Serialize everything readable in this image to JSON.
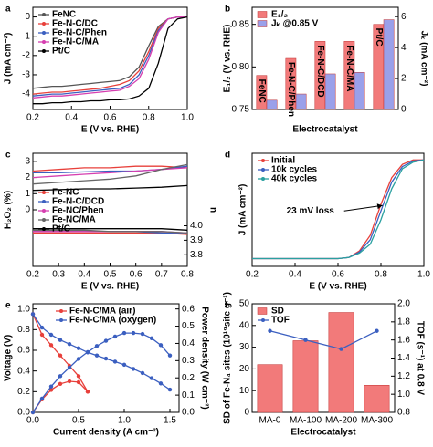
{
  "chart_data": [
    {
      "type": "line",
      "label": "a",
      "xlabel": "E (V vs. RHE)",
      "ylabel": "J (mA cm⁻²)",
      "x": [
        0.2,
        0.25,
        0.3,
        0.35,
        0.4,
        0.45,
        0.5,
        0.55,
        0.6,
        0.65,
        0.7,
        0.75,
        0.8,
        0.85,
        0.9,
        0.95,
        1.0
      ],
      "xlim": [
        0.2,
        1.0
      ],
      "xticks": [
        0.2,
        0.4,
        0.6,
        0.8,
        {
          "value": 1.0,
          "label": "1.0"
        }
      ],
      "ylim": [
        -4.8,
        0.5
      ],
      "yticks": [
        -4,
        -3,
        -2,
        -1,
        0
      ],
      "legend": "upper left",
      "series": [
        {
          "name": "FeNC",
          "color": "#555555",
          "values": [
            -3.7,
            -3.65,
            -3.6,
            -3.6,
            -3.55,
            -3.5,
            -3.45,
            -3.4,
            -3.35,
            -3.3,
            -3.1,
            -2.6,
            -1.5,
            -0.5,
            -0.1,
            0,
            0
          ]
        },
        {
          "name": "Fe-N-C/DC",
          "color": "#e8403b",
          "values": [
            -4.0,
            -3.95,
            -3.9,
            -3.9,
            -3.85,
            -3.8,
            -3.75,
            -3.7,
            -3.6,
            -3.5,
            -3.3,
            -2.8,
            -1.8,
            -0.6,
            -0.1,
            0,
            0
          ]
        },
        {
          "name": "Fe-N-C/Phen",
          "color": "#3b5fc0",
          "values": [
            -4.1,
            -4.05,
            -4.0,
            -4.0,
            -3.95,
            -3.9,
            -3.85,
            -3.8,
            -3.75,
            -3.7,
            -3.5,
            -3.0,
            -2.0,
            -0.7,
            -0.1,
            0,
            0
          ]
        },
        {
          "name": "Fe-N-C/MA",
          "color": "#d63fb0",
          "values": [
            -4.2,
            -4.15,
            -4.1,
            -4.1,
            -4.05,
            -4.0,
            -3.95,
            -3.9,
            -3.85,
            -3.8,
            -3.6,
            -3.2,
            -2.2,
            -0.8,
            -0.1,
            0,
            0
          ]
        },
        {
          "name": "Pt/C",
          "color": "#000000",
          "values": [
            -4.5,
            -4.5,
            -4.45,
            -4.45,
            -4.4,
            -4.4,
            -4.35,
            -4.35,
            -4.3,
            -4.3,
            -4.25,
            -4.1,
            -3.7,
            -2.4,
            -0.6,
            -0.1,
            0
          ]
        }
      ]
    },
    {
      "type": "bar",
      "label": "b",
      "xlabel": "Electrocatalyst",
      "ylabel": "E₁/₂ (V vs. RHE)",
      "y2label": "Jₖ (mA cm⁻²)",
      "categories": [
        "FeNC",
        "Fe-N-C/Phen",
        "Fe-N-C/DCD",
        "Fe-N-C/MA",
        "Pt/C"
      ],
      "ylim": [
        0.75,
        0.87
      ],
      "yticks": [
        0.75,
        {
          "value": 0.8,
          "label": "0.80"
        },
        0.85
      ],
      "y2lim": [
        0,
        6.6
      ],
      "y2ticks": [
        0,
        2,
        4,
        6
      ],
      "legend": "upper left",
      "series": [
        {
          "name": "E₁/₂",
          "color": "#f27a7a",
          "values": [
            0.79,
            0.81,
            0.83,
            0.83,
            0.85
          ]
        },
        {
          "name": "Jₖ @0.85 V",
          "color": "#9aa0ea",
          "axis": "y2",
          "values": [
            0.6,
            1.0,
            2.3,
            2.4,
            5.8
          ]
        }
      ]
    },
    {
      "type": "line",
      "label": "c",
      "xlabel": "E (V vs. RHE)",
      "ylabel": "H₂O₂ (%)",
      "y2label": "n",
      "x": [
        0.2,
        0.3,
        0.4,
        0.5,
        0.6,
        0.7,
        0.8
      ],
      "xlim": [
        0.2,
        0.8
      ],
      "xticks": [
        0.2,
        0.3,
        0.4,
        0.5,
        0.6,
        0.7,
        0.8
      ],
      "ylim": [
        -3.5,
        3.5
      ],
      "yticks": [
        0,
        1,
        2,
        3
      ],
      "y2lim": [
        3.72,
        4.5
      ],
      "y2ticks": [
        3.8,
        3.9,
        {
          "value": 4.0,
          "label": "4.0"
        }
      ],
      "legend": "center left",
      "series": [
        {
          "name": "Fe-NC",
          "color": "#e8403b",
          "values": [
            2.4,
            2.5,
            2.6,
            2.6,
            2.7,
            2.7,
            2.6
          ]
        },
        {
          "name": "Fe-N-C/DCD",
          "color": "#3b5fc0",
          "values": [
            2.3,
            2.3,
            2.35,
            2.4,
            2.4,
            2.5,
            2.7
          ]
        },
        {
          "name": "Fe-NC/Phen",
          "color": "#d63fb0",
          "values": [
            2.0,
            2.1,
            2.2,
            2.3,
            2.4,
            2.5,
            2.6
          ]
        },
        {
          "name": "Fe-NC/MA",
          "color": "#666666",
          "values": [
            1.6,
            1.7,
            1.8,
            1.9,
            2.1,
            2.5,
            2.8
          ]
        },
        {
          "name": "Pt/C",
          "color": "#000000",
          "values": [
            1.2,
            1.25,
            1.3,
            1.3,
            1.35,
            1.4,
            1.5
          ]
        },
        {
          "color": "#e8403b",
          "axis": "y2",
          "values": [
            3.95,
            3.95,
            3.95,
            3.95,
            3.95,
            3.95,
            3.94
          ]
        },
        {
          "color": "#3b5fc0",
          "axis": "y2",
          "values": [
            3.96,
            3.96,
            3.96,
            3.96,
            3.96,
            3.95,
            3.95
          ]
        },
        {
          "color": "#d63fb0",
          "axis": "y2",
          "values": [
            3.96,
            3.96,
            3.96,
            3.96,
            3.96,
            3.96,
            3.95
          ]
        },
        {
          "color": "#666666",
          "axis": "y2",
          "values": [
            3.97,
            3.97,
            3.97,
            3.96,
            3.96,
            3.96,
            3.95
          ]
        },
        {
          "color": "#000000",
          "axis": "y2",
          "values": [
            3.98,
            3.98,
            3.98,
            3.98,
            3.98,
            3.98,
            3.97
          ]
        }
      ]
    },
    {
      "type": "line",
      "label": "d",
      "xlabel": "E (V vs. RHE)",
      "ylabel": "J (mA cm⁻²)",
      "annotation": "23 mV loss",
      "x": [
        0.2,
        0.25,
        0.3,
        0.35,
        0.4,
        0.45,
        0.5,
        0.55,
        0.6,
        0.65,
        0.7,
        0.75,
        0.8,
        0.85,
        0.9,
        0.95,
        1.0
      ],
      "xlim": [
        0.2,
        1.0
      ],
      "xticks": [
        0.2,
        0.4,
        0.6,
        0.8,
        {
          "value": 1.0,
          "label": "1.0"
        }
      ],
      "ylim": [
        -4.8,
        0.3
      ],
      "legend": "upper left",
      "series": [
        {
          "name": "Initial",
          "color": "#e8403b",
          "values": [
            -4.45,
            -4.45,
            -4.45,
            -4.45,
            -4.45,
            -4.45,
            -4.45,
            -4.45,
            -4.45,
            -4.4,
            -4.1,
            -3.4,
            -2.0,
            -0.8,
            -0.2,
            0,
            0
          ]
        },
        {
          "name": "10k cycles",
          "color": "#3b5fc0",
          "values": [
            -4.45,
            -4.45,
            -4.45,
            -4.45,
            -4.45,
            -4.45,
            -4.45,
            -4.45,
            -4.45,
            -4.4,
            -4.15,
            -3.6,
            -2.3,
            -1.0,
            -0.3,
            -0.05,
            0
          ]
        },
        {
          "name": "40k cycles",
          "color": "#2aa0a0",
          "values": [
            -4.45,
            -4.45,
            -4.45,
            -4.45,
            -4.45,
            -4.45,
            -4.45,
            -4.45,
            -4.45,
            -4.4,
            -4.2,
            -3.8,
            -2.7,
            -1.3,
            -0.4,
            -0.1,
            0
          ]
        }
      ]
    },
    {
      "type": "line",
      "label": "e",
      "xlabel": "Current density (A cm⁻²)",
      "ylabel": "Voltage (V)",
      "y2label": "Power density (W cm⁻²)",
      "markers": true,
      "xlim": [
        0,
        1.6
      ],
      "xticks": [
        {
          "value": 0,
          "label": "0.0"
        },
        0.5,
        {
          "value": 1.0,
          "label": "1.0"
        },
        1.5
      ],
      "ylim": [
        0,
        1.05
      ],
      "yticks": [
        {
          "value": 0,
          "label": "0.0"
        },
        0.2,
        0.4,
        0.6,
        0.8,
        {
          "value": 1.0,
          "label": "1.0"
        }
      ],
      "y2lim": [
        0,
        0.63
      ],
      "y2ticks": [
        {
          "value": 0,
          "label": "0.0"
        },
        0.1,
        0.2,
        0.3,
        0.4,
        0.5,
        0.6
      ],
      "legend": "upper center",
      "series": [
        {
          "name": "Fe-N-C/MA (air)",
          "color": "#e8403b",
          "x": [
            0,
            0.1,
            0.2,
            0.3,
            0.4,
            0.5,
            0.6
          ],
          "values": [
            0.95,
            0.75,
            0.65,
            0.55,
            0.45,
            0.35,
            0.2
          ]
        },
        {
          "name": "Fe-N-C/MA (oxygen)",
          "color": "#3b5fc0",
          "x": [
            0,
            0.1,
            0.2,
            0.3,
            0.4,
            0.5,
            0.6,
            0.7,
            0.8,
            0.9,
            1.0,
            1.1,
            1.2,
            1.3,
            1.4,
            1.5
          ],
          "values": [
            0.95,
            0.82,
            0.75,
            0.7,
            0.66,
            0.62,
            0.58,
            0.55,
            0.52,
            0.49,
            0.46,
            0.42,
            0.38,
            0.33,
            0.28,
            0.22
          ]
        },
        {
          "color": "#e8403b",
          "axis": "y2",
          "x": [
            0,
            0.1,
            0.2,
            0.3,
            0.4,
            0.5,
            0.6
          ],
          "values": [
            0,
            0.075,
            0.13,
            0.165,
            0.18,
            0.175,
            0.12
          ]
        },
        {
          "color": "#3b5fc0",
          "axis": "y2",
          "x": [
            0,
            0.1,
            0.2,
            0.3,
            0.4,
            0.5,
            0.6,
            0.7,
            0.8,
            0.9,
            1.0,
            1.1,
            1.2,
            1.3,
            1.4,
            1.5
          ],
          "values": [
            0,
            0.08,
            0.15,
            0.21,
            0.26,
            0.31,
            0.35,
            0.385,
            0.415,
            0.44,
            0.46,
            0.46,
            0.455,
            0.43,
            0.39,
            0.33
          ]
        }
      ]
    },
    {
      "type": "bar",
      "label": "f",
      "xlabel": "Electrocatalyst",
      "ylabel": "SD of Fe-N₄ sites (10¹⁹site g⁻¹)",
      "y2label": "TOF (s⁻¹) at 0.8 V",
      "categories": [
        "MA-0",
        "MA-100",
        "MA-200",
        "MA-300"
      ],
      "ylim": [
        0,
        50
      ],
      "yticks": [
        0,
        10,
        20,
        30,
        40,
        50
      ],
      "y2lim": [
        0.8,
        2.0
      ],
      "y2ticks": [
        0.8,
        {
          "value": 1.0,
          "label": "1.0"
        },
        1.2,
        1.4,
        1.6,
        1.8,
        {
          "value": 2.0,
          "label": "2.0"
        }
      ],
      "legend": "upper left",
      "series": [
        {
          "name": "SD",
          "color": "#f27a7a",
          "values": [
            22,
            33,
            46,
            12.5
          ]
        },
        {
          "name": "TOF",
          "color": "#3b5fc0",
          "type": "line",
          "axis": "y2",
          "values": [
            1.7,
            1.6,
            1.5,
            1.7
          ]
        }
      ]
    }
  ]
}
